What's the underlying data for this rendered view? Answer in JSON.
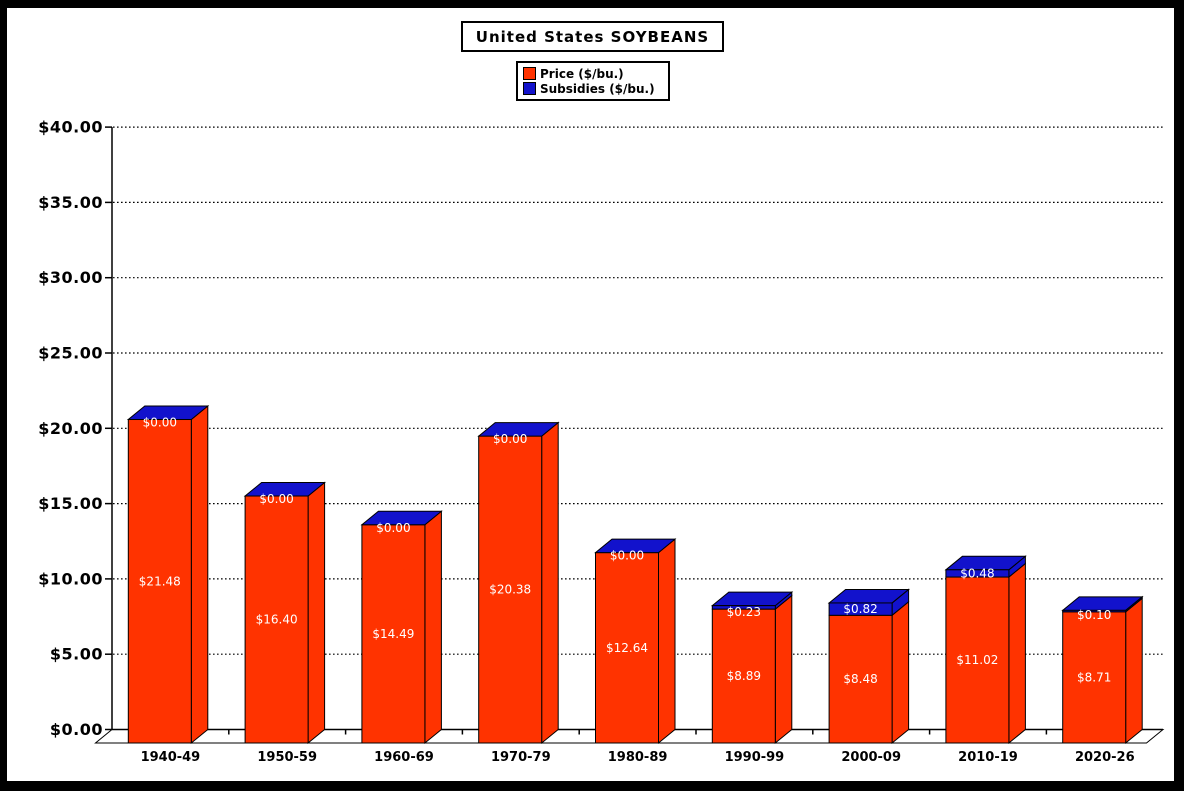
{
  "frame": {
    "border_color": "#000000",
    "background": "#ffffff"
  },
  "chart_data": {
    "type": "bar",
    "style": "3d-stacked-column",
    "title": "United States SOYBEANS",
    "categories": [
      "1940-49",
      "1950-59",
      "1960-69",
      "1970-79",
      "1980-89",
      "1990-99",
      "2000-09",
      "2010-19",
      "2020-26"
    ],
    "series": [
      {
        "name": "Price ($/bu.)",
        "color": "#FF3300",
        "values": [
          21.48,
          16.4,
          14.49,
          20.38,
          12.64,
          8.89,
          8.48,
          11.02,
          8.71
        ]
      },
      {
        "name": "Subsidies ($/bu.)",
        "color": "#1212CC",
        "values": [
          0.0,
          0.0,
          0.0,
          0.0,
          0.0,
          0.23,
          0.82,
          0.48,
          0.1
        ]
      }
    ],
    "data_labels": [
      "$21.48",
      "$16.40",
      "$14.49",
      "$20.38",
      "$12.64",
      "$8.89",
      "$8.48",
      "$11.02",
      "$8.71"
    ],
    "subsidy_labels": [
      "$0.00",
      "$0.00",
      "$0.00",
      "$0.00",
      "$0.00",
      "$0.23",
      "$0.82",
      "$0.48",
      "$0.10"
    ],
    "xlabel": "",
    "ylabel": "",
    "ylim": [
      0,
      40
    ],
    "y_step": 5,
    "y_ticks": [
      "$0.00",
      "$5.00",
      "$10.00",
      "$15.00",
      "$20.00",
      "$25.00",
      "$30.00",
      "$35.00",
      "$40.00"
    ],
    "gridlines": "dotted-horizontal",
    "legend_position": "top-center",
    "label_color": "#ffffff",
    "outline_color": "#000000"
  }
}
